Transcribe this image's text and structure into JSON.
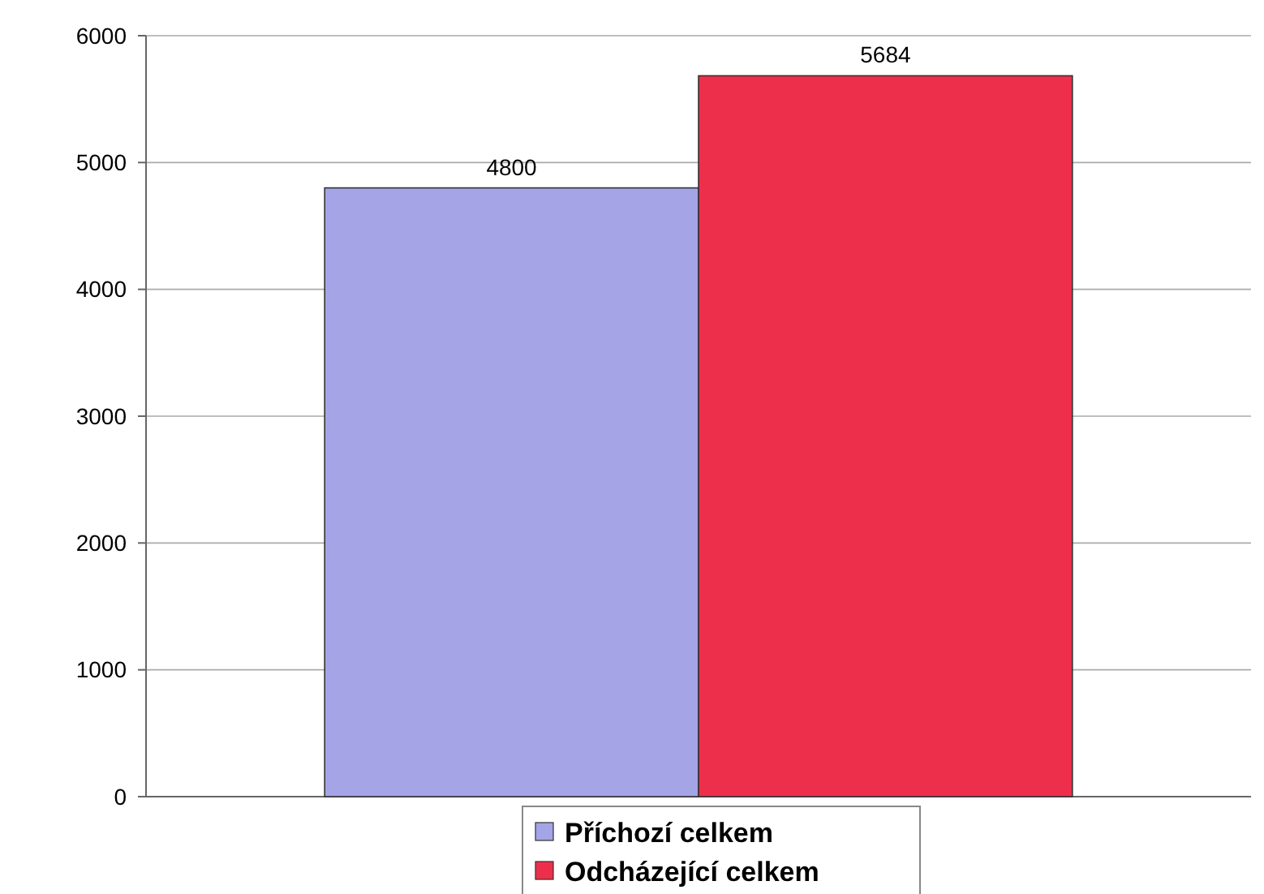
{
  "chart_data": {
    "type": "bar",
    "categories": [
      null
    ],
    "series": [
      {
        "name": "Příchozí celkem",
        "color": "#a4a4e6",
        "values": [
          4800
        ]
      },
      {
        "name": "Odcházející celkem",
        "color": "#ee2f4c",
        "values": [
          5684
        ]
      }
    ],
    "ylim": [
      0,
      6000
    ],
    "yticks": [
      0,
      1000,
      2000,
      3000,
      4000,
      5000,
      6000
    ],
    "grid": "y",
    "legend": "bottom",
    "data_labels": true
  }
}
